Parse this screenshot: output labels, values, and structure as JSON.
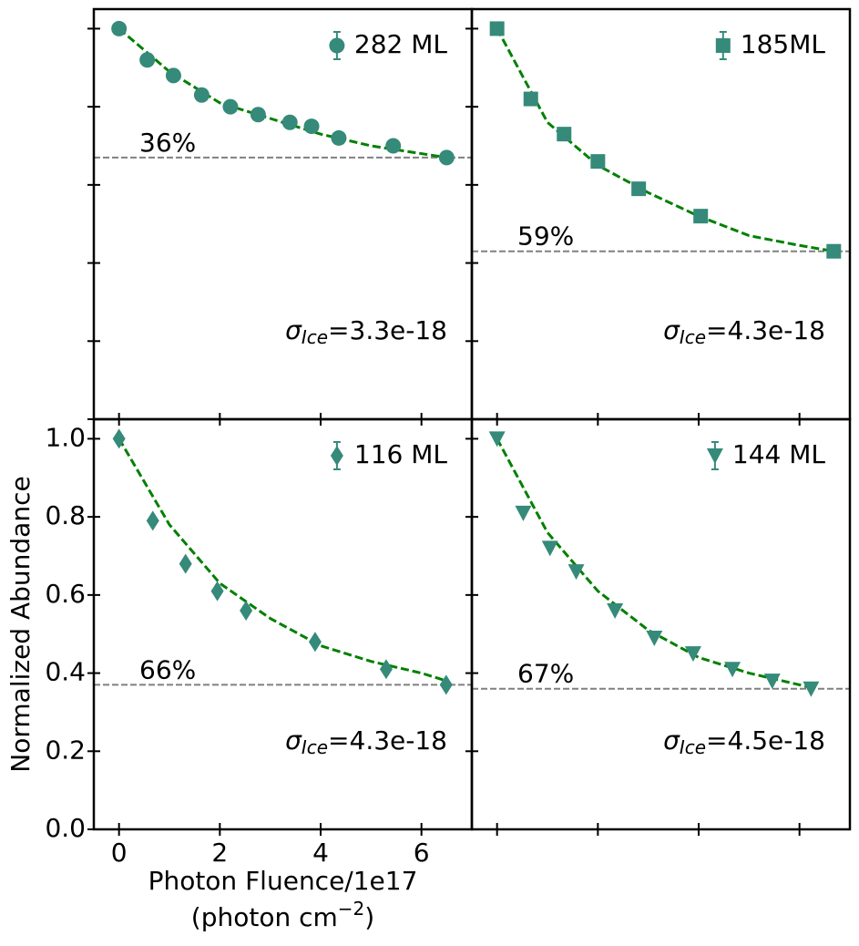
{
  "chart_data": [
    {
      "type": "scatter",
      "xlim": [
        -0.5,
        7.0
      ],
      "ylim": [
        0,
        1.05
      ],
      "xticks": [
        0,
        2,
        4,
        6
      ],
      "yticks": [
        {
          "value": 0,
          "label": "0.0"
        },
        0.2,
        0.4,
        0.6,
        0.8,
        {
          "value": 1,
          "label": "1.0"
        }
      ],
      "series": [
        {
          "name": "282 ML",
          "color": "#358a7a",
          "marker": "circle",
          "x": [
            0,
            0.56,
            1.08,
            1.64,
            2.21,
            2.76,
            3.39,
            3.82,
            4.36,
            5.44,
            6.5
          ],
          "values": [
            1.0,
            0.92,
            0.88,
            0.83,
            0.8,
            0.78,
            0.76,
            0.75,
            0.72,
            0.7,
            0.67
          ]
        }
      ],
      "fit": {
        "color": "#008000",
        "x": [
          0,
          1,
          2,
          3,
          4,
          5,
          6,
          6.5
        ],
        "values": [
          1.0,
          0.89,
          0.81,
          0.77,
          0.73,
          0.7,
          0.68,
          0.67
        ]
      },
      "hline": 0.67,
      "percent_label": "36%",
      "sigma_label": {
        "symbol": "σ",
        "subscript": "Ice",
        "text": "=3.3e-18"
      }
    },
    {
      "type": "scatter",
      "xlim": [
        -0.5,
        7.0
      ],
      "ylim": [
        0,
        1.05
      ],
      "xticks": [
        0,
        2,
        4,
        6
      ],
      "yticks": [
        {
          "value": 0,
          "label": "0.0"
        },
        0.2,
        0.4,
        0.6,
        0.8,
        {
          "value": 1,
          "label": "1.0"
        }
      ],
      "series": [
        {
          "name": "185ML",
          "color": "#358a7a",
          "marker": "square",
          "x": [
            0,
            0.67,
            1.33,
            2.0,
            2.81,
            4.04,
            6.68
          ],
          "values": [
            1.0,
            0.82,
            0.73,
            0.66,
            0.59,
            0.52,
            0.43
          ]
        }
      ],
      "fit": {
        "color": "#008000",
        "x": [
          0,
          1,
          2,
          3,
          4,
          5,
          6,
          6.68
        ],
        "values": [
          1.0,
          0.76,
          0.65,
          0.58,
          0.52,
          0.47,
          0.445,
          0.43
        ]
      },
      "hline": 0.43,
      "percent_label": "59%",
      "sigma_label": {
        "symbol": "σ",
        "subscript": "Ice",
        "text": "=4.3e-18"
      }
    },
    {
      "type": "scatter",
      "xlim": [
        -0.5,
        7.0
      ],
      "ylim": [
        0,
        1.05
      ],
      "xticks": [
        0,
        2,
        4,
        6
      ],
      "yticks": [
        {
          "value": 0,
          "label": "0.0"
        },
        0.2,
        0.4,
        0.6,
        0.8,
        {
          "value": 1,
          "label": "1.0"
        }
      ],
      "tick_labels": true,
      "ylabel": "Normalized Abundance",
      "xlabel": "Photon Fluence/1e17",
      "xlabel2": {
        "before": "(photon cm",
        "sup": "−2",
        "after": ")"
      },
      "series": [
        {
          "name": "116 ML",
          "color": "#358a7a",
          "marker": "diamond",
          "x": [
            0,
            0.67,
            1.32,
            1.95,
            2.52,
            3.89,
            5.3,
            6.49
          ],
          "values": [
            1.0,
            0.79,
            0.68,
            0.61,
            0.56,
            0.48,
            0.41,
            0.37
          ]
        }
      ],
      "fit": {
        "color": "#008000",
        "x": [
          0,
          1,
          2,
          3,
          4,
          5,
          6,
          6.5
        ],
        "values": [
          1.0,
          0.78,
          0.63,
          0.54,
          0.47,
          0.43,
          0.4,
          0.38
        ]
      },
      "hline": 0.37,
      "percent_label": "66%",
      "sigma_label": {
        "symbol": "σ",
        "subscript": "Ice",
        "text": "=4.3e-18"
      }
    },
    {
      "type": "scatter",
      "xlim": [
        -0.5,
        7.0
      ],
      "ylim": [
        0,
        1.05
      ],
      "xticks": [
        0,
        2,
        4,
        6
      ],
      "yticks": [
        {
          "value": 0,
          "label": "0.0"
        },
        0.2,
        0.4,
        0.6,
        0.8,
        {
          "value": 1,
          "label": "1.0"
        }
      ],
      "series": [
        {
          "name": "144 ML",
          "color": "#358a7a",
          "marker": "triangle-down",
          "x": [
            0,
            0.52,
            1.05,
            1.57,
            2.34,
            3.12,
            3.89,
            4.67,
            5.46,
            6.23
          ],
          "values": [
            1.0,
            0.81,
            0.72,
            0.66,
            0.56,
            0.49,
            0.45,
            0.41,
            0.38,
            0.36
          ]
        }
      ],
      "fit": {
        "color": "#008000",
        "x": [
          0,
          1,
          2,
          3,
          4,
          5,
          6,
          6.3
        ],
        "values": [
          1.0,
          0.76,
          0.61,
          0.51,
          0.44,
          0.4,
          0.37,
          0.36
        ]
      },
      "hline": 0.36,
      "percent_label": "67%",
      "sigma_label": {
        "symbol": "σ",
        "subscript": "Ice",
        "text": "=4.5e-18"
      }
    }
  ]
}
